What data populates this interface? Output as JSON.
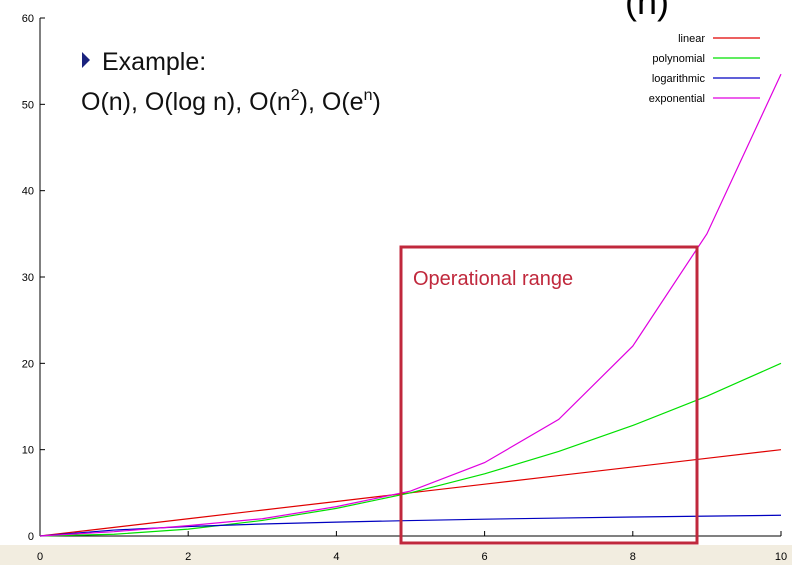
{
  "chart_data": {
    "type": "line",
    "title_fragment": "(n)",
    "bullet": "Example:",
    "examples": [
      "O(n), O(log n), O(n",
      "2",
      "), O(e",
      "n",
      ")"
    ],
    "annotation": "Operational range",
    "x": [
      0,
      1,
      2,
      3,
      4,
      5,
      6,
      7,
      8,
      9,
      10
    ],
    "series": [
      {
        "name": "linear",
        "color": "#e00000",
        "values": [
          0,
          1,
          2,
          3,
          4,
          5,
          6,
          7,
          8,
          9,
          10
        ]
      },
      {
        "name": "polynomial",
        "color": "#00e000",
        "values": [
          0,
          0.2,
          0.8,
          1.8,
          3.2,
          5,
          7.2,
          9.8,
          12.8,
          16.2,
          20
        ]
      },
      {
        "name": "logarithmic",
        "color": "#0000c0",
        "values": [
          0,
          0.69,
          1.1,
          1.39,
          1.61,
          1.79,
          1.95,
          2.08,
          2.2,
          2.3,
          2.4
        ]
      },
      {
        "name": "exponential",
        "color": "#e000e0",
        "values": [
          0,
          0.5,
          1.2,
          2.0,
          3.4,
          5.2,
          8.5,
          13.5,
          22,
          35,
          53.5
        ]
      }
    ],
    "xlim": [
      0,
      10
    ],
    "xticks": [
      0,
      2,
      4,
      6,
      8,
      10
    ],
    "ylim": [
      0,
      60
    ],
    "yticks": [
      0,
      10,
      20,
      30,
      40,
      50,
      60
    ],
    "legend": "top-right"
  }
}
